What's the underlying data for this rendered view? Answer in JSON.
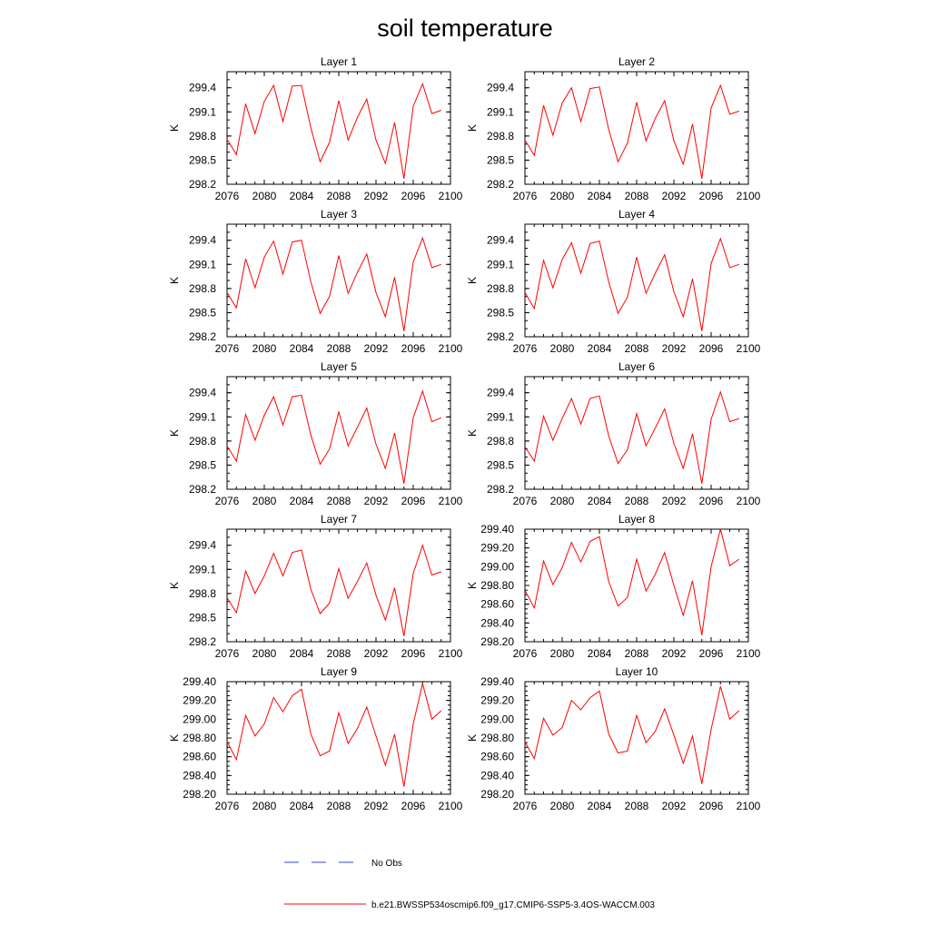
{
  "figure": {
    "title": "soil temperature",
    "legend": {
      "obs_label": "No Obs",
      "model_label": "b.e21.BWSSP534oscmip6.f09_g17.CMIP6-SSP5-3.4OS-WACCM.003",
      "obs_color": "#3344cc",
      "model_color": "#ff0000"
    }
  },
  "chart_data": [
    {
      "type": "line",
      "title": "Layer 1",
      "ylabel": "K",
      "xlim": [
        2076,
        2100
      ],
      "ylim": [
        298.2,
        299.6
      ],
      "yticks": [
        "298.2",
        "298.5",
        "298.8",
        "299.1",
        "299.4"
      ],
      "xticks": [
        "2076",
        "2080",
        "2084",
        "2088",
        "2092",
        "2096",
        "2100"
      ],
      "x": [
        2076,
        2077,
        2078,
        2079,
        2080,
        2081,
        2082,
        2083,
        2084,
        2085,
        2086,
        2087,
        2088,
        2089,
        2090,
        2091,
        2092,
        2093,
        2094,
        2095,
        2096,
        2097,
        2098,
        2099
      ],
      "series": [
        {
          "name": "b.e21.BWSSP534oscmip6.f09_g17.CMIP6-SSP5-3.4OS-WACCM.003",
          "color": "#ff0000",
          "values": [
            298.76,
            298.57,
            299.2,
            298.83,
            299.23,
            299.43,
            298.98,
            299.42,
            299.43,
            298.9,
            298.48,
            298.72,
            299.24,
            298.75,
            299.03,
            299.26,
            298.75,
            298.46,
            298.97,
            298.27,
            299.17,
            299.45,
            299.08,
            299.12
          ]
        }
      ]
    },
    {
      "type": "line",
      "title": "Layer 2",
      "ylabel": "K",
      "xlim": [
        2076,
        2100
      ],
      "ylim": [
        298.2,
        299.6
      ],
      "yticks": [
        "298.2",
        "298.5",
        "298.8",
        "299.1",
        "299.4"
      ],
      "xticks": [
        "2076",
        "2080",
        "2084",
        "2088",
        "2092",
        "2096",
        "2100"
      ],
      "x": [
        2076,
        2077,
        2078,
        2079,
        2080,
        2081,
        2082,
        2083,
        2084,
        2085,
        2086,
        2087,
        2088,
        2089,
        2090,
        2091,
        2092,
        2093,
        2094,
        2095,
        2096,
        2097,
        2098,
        2099
      ],
      "series": [
        {
          "name": "b.e21.BWSSP534oscmip6.f09_g17.CMIP6-SSP5-3.4OS-WACCM.003",
          "color": "#ff0000",
          "values": [
            298.75,
            298.56,
            299.18,
            298.81,
            299.21,
            299.4,
            298.98,
            299.39,
            299.41,
            298.88,
            298.48,
            298.71,
            299.22,
            298.74,
            299.02,
            299.24,
            298.74,
            298.45,
            298.95,
            298.27,
            299.15,
            299.43,
            299.07,
            299.11
          ]
        }
      ]
    },
    {
      "type": "line",
      "title": "Layer 3",
      "ylabel": "K",
      "xlim": [
        2076,
        2100
      ],
      "ylim": [
        298.2,
        299.6
      ],
      "yticks": [
        "298.2",
        "298.5",
        "298.8",
        "299.1",
        "299.4"
      ],
      "xticks": [
        "2076",
        "2080",
        "2084",
        "2088",
        "2092",
        "2096",
        "2100"
      ],
      "x": [
        2076,
        2077,
        2078,
        2079,
        2080,
        2081,
        2082,
        2083,
        2084,
        2085,
        2086,
        2087,
        2088,
        2089,
        2090,
        2091,
        2092,
        2093,
        2094,
        2095,
        2096,
        2097,
        2098,
        2099
      ],
      "series": [
        {
          "name": "b.e21.BWSSP534oscmip6.f09_g17.CMIP6-SSP5-3.4OS-WACCM.003",
          "color": "#ff0000",
          "values": [
            298.75,
            298.56,
            299.17,
            298.81,
            299.19,
            299.39,
            298.98,
            299.38,
            299.4,
            298.88,
            298.49,
            298.7,
            299.21,
            298.74,
            299.0,
            299.23,
            298.75,
            298.45,
            298.94,
            298.27,
            299.13,
            299.43,
            299.06,
            299.1
          ]
        }
      ]
    },
    {
      "type": "line",
      "title": "Layer 4",
      "ylabel": "K",
      "xlim": [
        2076,
        2100
      ],
      "ylim": [
        298.2,
        299.6
      ],
      "yticks": [
        "298.2",
        "298.5",
        "298.8",
        "299.1",
        "299.4"
      ],
      "xticks": [
        "2076",
        "2080",
        "2084",
        "2088",
        "2092",
        "2096",
        "2100"
      ],
      "x": [
        2076,
        2077,
        2078,
        2079,
        2080,
        2081,
        2082,
        2083,
        2084,
        2085,
        2086,
        2087,
        2088,
        2089,
        2090,
        2091,
        2092,
        2093,
        2094,
        2095,
        2096,
        2097,
        2098,
        2099
      ],
      "series": [
        {
          "name": "b.e21.BWSSP534oscmip6.f09_g17.CMIP6-SSP5-3.4OS-WACCM.003",
          "color": "#ff0000",
          "values": [
            298.75,
            298.55,
            299.15,
            298.81,
            299.16,
            299.37,
            298.99,
            299.36,
            299.39,
            298.88,
            298.49,
            298.69,
            299.19,
            298.74,
            298.99,
            299.22,
            298.76,
            298.45,
            298.92,
            298.27,
            299.11,
            299.42,
            299.06,
            299.1
          ]
        }
      ]
    },
    {
      "type": "line",
      "title": "Layer 5",
      "ylabel": "K",
      "xlim": [
        2076,
        2100
      ],
      "ylim": [
        298.2,
        299.6
      ],
      "yticks": [
        "298.2",
        "298.5",
        "298.8",
        "299.1",
        "299.4"
      ],
      "xticks": [
        "2076",
        "2080",
        "2084",
        "2088",
        "2092",
        "2096",
        "2100"
      ],
      "x": [
        2076,
        2077,
        2078,
        2079,
        2080,
        2081,
        2082,
        2083,
        2084,
        2085,
        2086,
        2087,
        2088,
        2089,
        2090,
        2091,
        2092,
        2093,
        2094,
        2095,
        2096,
        2097,
        2098,
        2099
      ],
      "series": [
        {
          "name": "b.e21.BWSSP534oscmip6.f09_g17.CMIP6-SSP5-3.4OS-WACCM.003",
          "color": "#ff0000",
          "values": [
            298.74,
            298.55,
            299.13,
            298.81,
            299.12,
            299.35,
            299.0,
            299.35,
            299.37,
            298.87,
            298.51,
            298.7,
            299.16,
            298.74,
            298.97,
            299.21,
            298.76,
            298.46,
            298.9,
            298.27,
            299.09,
            299.42,
            299.04,
            299.09
          ]
        }
      ]
    },
    {
      "type": "line",
      "title": "Layer 6",
      "ylabel": "K",
      "xlim": [
        2076,
        2100
      ],
      "ylim": [
        298.2,
        299.6
      ],
      "yticks": [
        "298.2",
        "298.5",
        "298.8",
        "299.1",
        "299.4"
      ],
      "xticks": [
        "2076",
        "2080",
        "2084",
        "2088",
        "2092",
        "2096",
        "2100"
      ],
      "x": [
        2076,
        2077,
        2078,
        2079,
        2080,
        2081,
        2082,
        2083,
        2084,
        2085,
        2086,
        2087,
        2088,
        2089,
        2090,
        2091,
        2092,
        2093,
        2094,
        2095,
        2096,
        2097,
        2098,
        2099
      ],
      "series": [
        {
          "name": "b.e21.BWSSP534oscmip6.f09_g17.CMIP6-SSP5-3.4OS-WACCM.003",
          "color": "#ff0000",
          "values": [
            298.73,
            298.55,
            299.11,
            298.81,
            299.08,
            299.33,
            299.01,
            299.33,
            299.36,
            298.86,
            298.52,
            298.69,
            299.14,
            298.74,
            298.96,
            299.2,
            298.77,
            298.46,
            298.89,
            298.27,
            299.07,
            299.41,
            299.04,
            299.08
          ]
        }
      ]
    },
    {
      "type": "line",
      "title": "Layer 7",
      "ylabel": "K",
      "xlim": [
        2076,
        2100
      ],
      "ylim": [
        298.2,
        299.6
      ],
      "yticks": [
        "298.2",
        "298.5",
        "298.8",
        "299.1",
        "299.4"
      ],
      "xticks": [
        "2076",
        "2080",
        "2084",
        "2088",
        "2092",
        "2096",
        "2100"
      ],
      "x": [
        2076,
        2077,
        2078,
        2079,
        2080,
        2081,
        2082,
        2083,
        2084,
        2085,
        2086,
        2087,
        2088,
        2089,
        2090,
        2091,
        2092,
        2093,
        2094,
        2095,
        2096,
        2097,
        2098,
        2099
      ],
      "series": [
        {
          "name": "b.e21.BWSSP534oscmip6.f09_g17.CMIP6-SSP5-3.4OS-WACCM.003",
          "color": "#ff0000",
          "values": [
            298.75,
            298.56,
            299.08,
            298.8,
            299.02,
            299.3,
            299.02,
            299.31,
            299.34,
            298.85,
            298.55,
            298.68,
            299.11,
            298.74,
            298.95,
            299.18,
            298.78,
            298.47,
            298.87,
            298.27,
            299.05,
            299.4,
            299.03,
            299.07
          ]
        }
      ]
    },
    {
      "type": "line",
      "title": "Layer 8",
      "ylabel": "K",
      "xlim": [
        2076,
        2100
      ],
      "ylim": [
        298.2,
        299.4
      ],
      "yticks": [
        "298.20",
        "298.40",
        "298.60",
        "298.80",
        "299.00",
        "299.20",
        "299.40"
      ],
      "xticks": [
        "2076",
        "2080",
        "2084",
        "2088",
        "2092",
        "2096",
        "2100"
      ],
      "x": [
        2076,
        2077,
        2078,
        2079,
        2080,
        2081,
        2082,
        2083,
        2084,
        2085,
        2086,
        2087,
        2088,
        2089,
        2090,
        2091,
        2092,
        2093,
        2094,
        2095,
        2096,
        2097,
        2098,
        2099
      ],
      "series": [
        {
          "name": "b.e21.BWSSP534oscmip6.f09_g17.CMIP6-SSP5-3.4OS-WACCM.003",
          "color": "#ff0000",
          "values": [
            298.75,
            298.56,
            299.06,
            298.81,
            298.99,
            299.26,
            299.05,
            299.27,
            299.32,
            298.84,
            298.58,
            298.67,
            299.08,
            298.74,
            298.92,
            299.15,
            298.8,
            298.48,
            298.85,
            298.27,
            299.0,
            299.4,
            299.01,
            299.08
          ]
        }
      ]
    },
    {
      "type": "line",
      "title": "Layer 9",
      "ylabel": "K",
      "xlim": [
        2076,
        2100
      ],
      "ylim": [
        298.2,
        299.4
      ],
      "yticks": [
        "298.20",
        "298.40",
        "298.60",
        "298.80",
        "299.00",
        "299.20",
        "299.40"
      ],
      "xticks": [
        "2076",
        "2080",
        "2084",
        "2088",
        "2092",
        "2096",
        "2100"
      ],
      "x": [
        2076,
        2077,
        2078,
        2079,
        2080,
        2081,
        2082,
        2083,
        2084,
        2085,
        2086,
        2087,
        2088,
        2089,
        2090,
        2091,
        2092,
        2093,
        2094,
        2095,
        2096,
        2097,
        2098,
        2099
      ],
      "series": [
        {
          "name": "b.e21.BWSSP534oscmip6.f09_g17.CMIP6-SSP5-3.4OS-WACCM.003",
          "color": "#ff0000",
          "values": [
            298.76,
            298.57,
            299.04,
            298.82,
            298.95,
            299.23,
            299.08,
            299.25,
            299.32,
            298.84,
            298.61,
            298.66,
            299.07,
            298.74,
            298.9,
            299.13,
            298.82,
            298.51,
            298.84,
            298.28,
            298.95,
            299.38,
            299.0,
            299.09
          ]
        }
      ]
    },
    {
      "type": "line",
      "title": "Layer 10",
      "ylabel": "K",
      "xlim": [
        2076,
        2100
      ],
      "ylim": [
        298.2,
        299.4
      ],
      "yticks": [
        "298.20",
        "298.40",
        "298.60",
        "298.80",
        "299.00",
        "299.20",
        "299.40"
      ],
      "xticks": [
        "2076",
        "2080",
        "2084",
        "2088",
        "2092",
        "2096",
        "2100"
      ],
      "x": [
        2076,
        2077,
        2078,
        2079,
        2080,
        2081,
        2082,
        2083,
        2084,
        2085,
        2086,
        2087,
        2088,
        2089,
        2090,
        2091,
        2092,
        2093,
        2094,
        2095,
        2096,
        2097,
        2098,
        2099
      ],
      "series": [
        {
          "name": "b.e21.BWSSP534oscmip6.f09_g17.CMIP6-SSP5-3.4OS-WACCM.003",
          "color": "#ff0000",
          "values": [
            298.76,
            298.58,
            299.01,
            298.83,
            298.91,
            299.2,
            299.1,
            299.23,
            299.3,
            298.84,
            298.64,
            298.66,
            299.04,
            298.75,
            298.87,
            299.11,
            298.83,
            298.53,
            298.82,
            298.31,
            298.89,
            299.35,
            299.0,
            299.09
          ]
        }
      ]
    }
  ]
}
